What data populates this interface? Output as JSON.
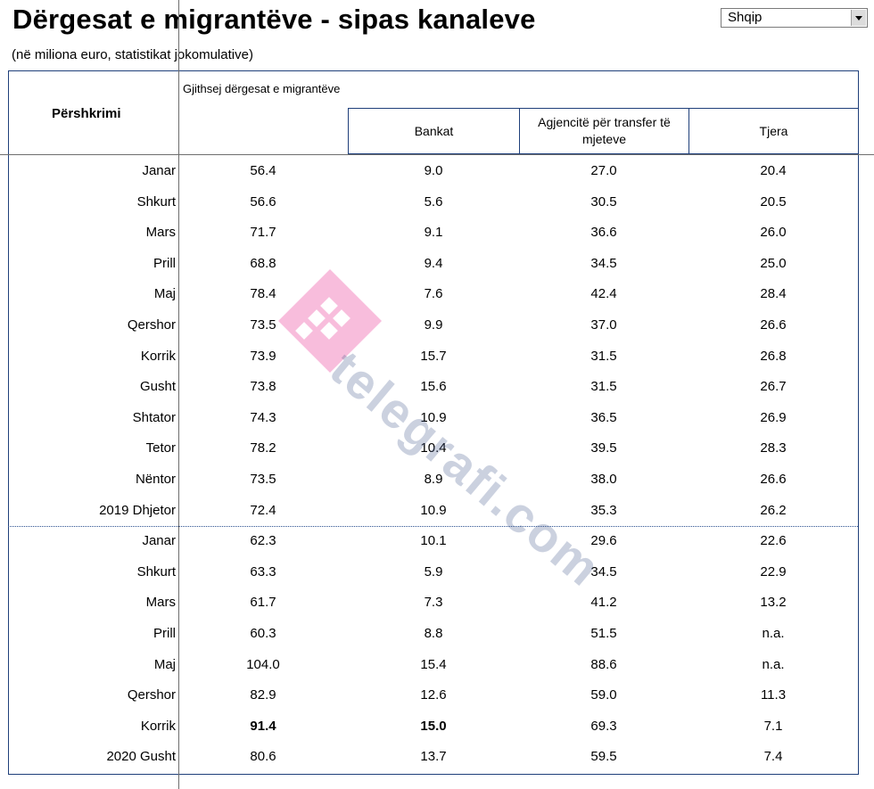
{
  "title": "Dërgesat e migrantëve - sipas kanaleve",
  "subtitle": "(në miliona euro, statistikat jokomulative)",
  "language_select": {
    "value": "Shqip"
  },
  "table": {
    "header_main": "Gjithsej dërgesat e migrantëve",
    "header_description": "Përshkrimi",
    "header_banks": "Bankat",
    "header_agencies": "Agjencitë për transfer të mjeteve",
    "header_other": "Tjera"
  },
  "rows": [
    {
      "label": "Janar",
      "total": "56.4",
      "banks": "9.0",
      "agencies": "27.0",
      "other": "20.4"
    },
    {
      "label": "Shkurt",
      "total": "56.6",
      "banks": "5.6",
      "agencies": "30.5",
      "other": "20.5"
    },
    {
      "label": "Mars",
      "total": "71.7",
      "banks": "9.1",
      "agencies": "36.6",
      "other": "26.0"
    },
    {
      "label": "Prill",
      "total": "68.8",
      "banks": "9.4",
      "agencies": "34.5",
      "other": "25.0"
    },
    {
      "label": "Maj",
      "total": "78.4",
      "banks": "7.6",
      "agencies": "42.4",
      "other": "28.4"
    },
    {
      "label": "Qershor",
      "total": "73.5",
      "banks": "9.9",
      "agencies": "37.0",
      "other": "26.6"
    },
    {
      "label": "Korrik",
      "total": "73.9",
      "banks": "15.7",
      "agencies": "31.5",
      "other": "26.8"
    },
    {
      "label": "Gusht",
      "total": "73.8",
      "banks": "15.6",
      "agencies": "31.5",
      "other": "26.7"
    },
    {
      "label": "Shtator",
      "total": "74.3",
      "banks": "10.9",
      "agencies": "36.5",
      "other": "26.9"
    },
    {
      "label": "Tetor",
      "total": "78.2",
      "banks": "10.4",
      "agencies": "39.5",
      "other": "28.3"
    },
    {
      "label": "Nëntor",
      "total": "73.5",
      "banks": "8.9",
      "agencies": "38.0",
      "other": "26.6"
    },
    {
      "label": "2019 Dhjetor",
      "total": "72.4",
      "banks": "10.9",
      "agencies": "35.3",
      "other": "26.2"
    },
    {
      "label": "Janar",
      "total": "62.3",
      "banks": "10.1",
      "agencies": "29.6",
      "other": "22.6"
    },
    {
      "label": "Shkurt",
      "total": "63.3",
      "banks": "5.9",
      "agencies": "34.5",
      "other": "22.9"
    },
    {
      "label": "Mars",
      "total": "61.7",
      "banks": "7.3",
      "agencies": "41.2",
      "other": "13.2"
    },
    {
      "label": "Prill",
      "total": "60.3",
      "banks": "8.8",
      "agencies": "51.5",
      "other": "n.a."
    },
    {
      "label": "Maj",
      "total": "104.0",
      "banks": "15.4",
      "agencies": "88.6",
      "other": "n.a."
    },
    {
      "label": "Qershor",
      "total": "82.9",
      "banks": "12.6",
      "agencies": "59.0",
      "other": "11.3"
    },
    {
      "label": "Korrik",
      "total": "91.4",
      "banks": "15.0",
      "agencies": "69.3",
      "other": "7.1"
    },
    {
      "label": "2020 Gusht",
      "total": "80.6",
      "banks": "13.7",
      "agencies": "59.5",
      "other": "7.4"
    }
  ],
  "watermark": {
    "text": "telegrafi.com",
    "logo_color": "#f7b6d8"
  }
}
